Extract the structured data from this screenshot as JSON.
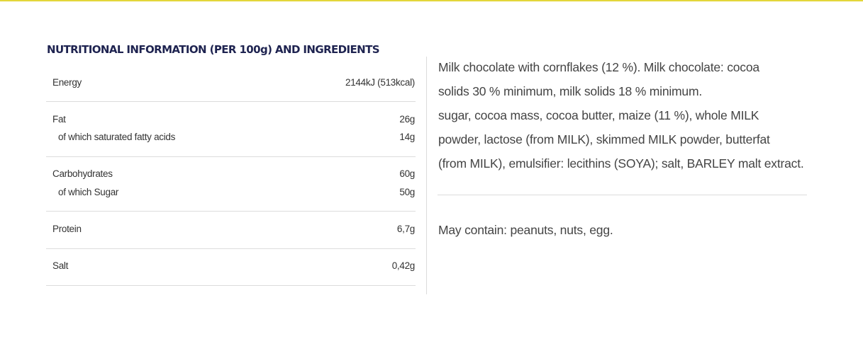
{
  "section_title": "NUTRITIONAL INFORMATION (PER 100g) AND INGREDIENTS",
  "nutrition": {
    "energy": {
      "label": "Energy",
      "value": "2144kJ (513kcal)"
    },
    "fat": {
      "label": "Fat",
      "value": "26g"
    },
    "saturated": {
      "label": "of which saturated fatty acids",
      "value": "14g"
    },
    "carbohydrates": {
      "label": "Carbohydrates",
      "value": "60g"
    },
    "sugar": {
      "label": "of which Sugar",
      "value": "50g"
    },
    "protein": {
      "label": "Protein",
      "value": "6,7g"
    },
    "salt": {
      "label": "Salt",
      "value": "0,42g"
    }
  },
  "ingredients": {
    "lines": [
      "Milk chocolate with cornflakes (12 %). Milk chocolate: cocoa",
      "solids 30 % minimum, milk solids 18 % minimum.",
      "sugar, cocoa mass, cocoa butter, maize (11 %), whole MILK",
      "powder, lactose (from MILK), skimmed MILK powder, butterfat",
      "(from MILK), emulsifier: lecithins (SOYA); salt, BARLEY malt extract."
    ]
  },
  "allergens": "May contain: peanuts, nuts, egg.",
  "colors": {
    "accent_rule": "#e3d63a",
    "title": "#1e2350",
    "divider": "#dcdcdc"
  }
}
